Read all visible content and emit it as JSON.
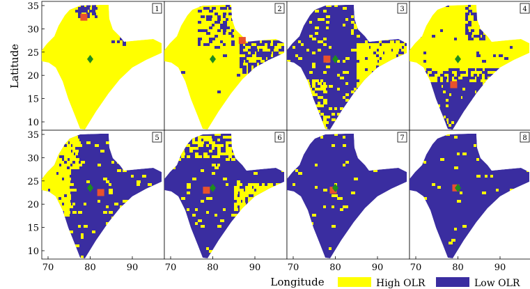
{
  "figure": {
    "ylabel": "Latitude",
    "xlabel": "Longitude",
    "x_ticks": [
      "70",
      "80",
      "90"
    ],
    "y_ticks": [
      "35",
      "30",
      "25",
      "20",
      "15",
      "10"
    ],
    "legend": [
      {
        "label": "High OLR",
        "color": "#ffff00"
      },
      {
        "label": "Low OLR",
        "color": "#3a2da0"
      }
    ]
  },
  "colors": {
    "high": "#ffff00",
    "low": "#3a2da0",
    "diamond": "#1e8c1e",
    "square": "#e8522d"
  },
  "panels": [
    {
      "number": "1",
      "low_fraction": 0.05,
      "pattern": "north-edge",
      "square": {
        "lon": 78.5,
        "lat": 32.5
      },
      "diamond": {
        "lon": 80,
        "lat": 23.5
      }
    },
    {
      "number": "2",
      "low_fraction": 0.15,
      "pattern": "north-east",
      "square": {
        "lon": 87,
        "lat": 27.5
      },
      "diamond": {
        "lon": 80,
        "lat": 23.5
      }
    },
    {
      "number": "3",
      "low_fraction": 0.6,
      "pattern": "west",
      "square": {
        "lon": 78,
        "lat": 23.5
      },
      "diamond": {
        "lon": 80,
        "lat": 23.5
      }
    },
    {
      "number": "4",
      "low_fraction": 0.45,
      "pattern": "south",
      "square": {
        "lon": 79,
        "lat": 18
      },
      "diamond": {
        "lon": 80,
        "lat": 23.5
      }
    },
    {
      "number": "5",
      "low_fraction": 0.7,
      "pattern": "east",
      "square": {
        "lon": 82.5,
        "lat": 22.5
      },
      "diamond": {
        "lon": 80,
        "lat": 23.5
      }
    },
    {
      "number": "6",
      "low_fraction": 0.85,
      "pattern": "mostly-low",
      "square": {
        "lon": 78.5,
        "lat": 23
      },
      "diamond": {
        "lon": 80,
        "lat": 23.5
      }
    },
    {
      "number": "7",
      "low_fraction": 0.95,
      "pattern": "almost-all-low",
      "square": {
        "lon": 79.5,
        "lat": 23
      },
      "diamond": {
        "lon": 80,
        "lat": 23.5
      }
    },
    {
      "number": "8",
      "low_fraction": 0.97,
      "pattern": "almost-all-low",
      "square": {
        "lon": 79.5,
        "lat": 23.5
      },
      "diamond": {
        "lon": 80,
        "lat": 23.5
      }
    }
  ]
}
